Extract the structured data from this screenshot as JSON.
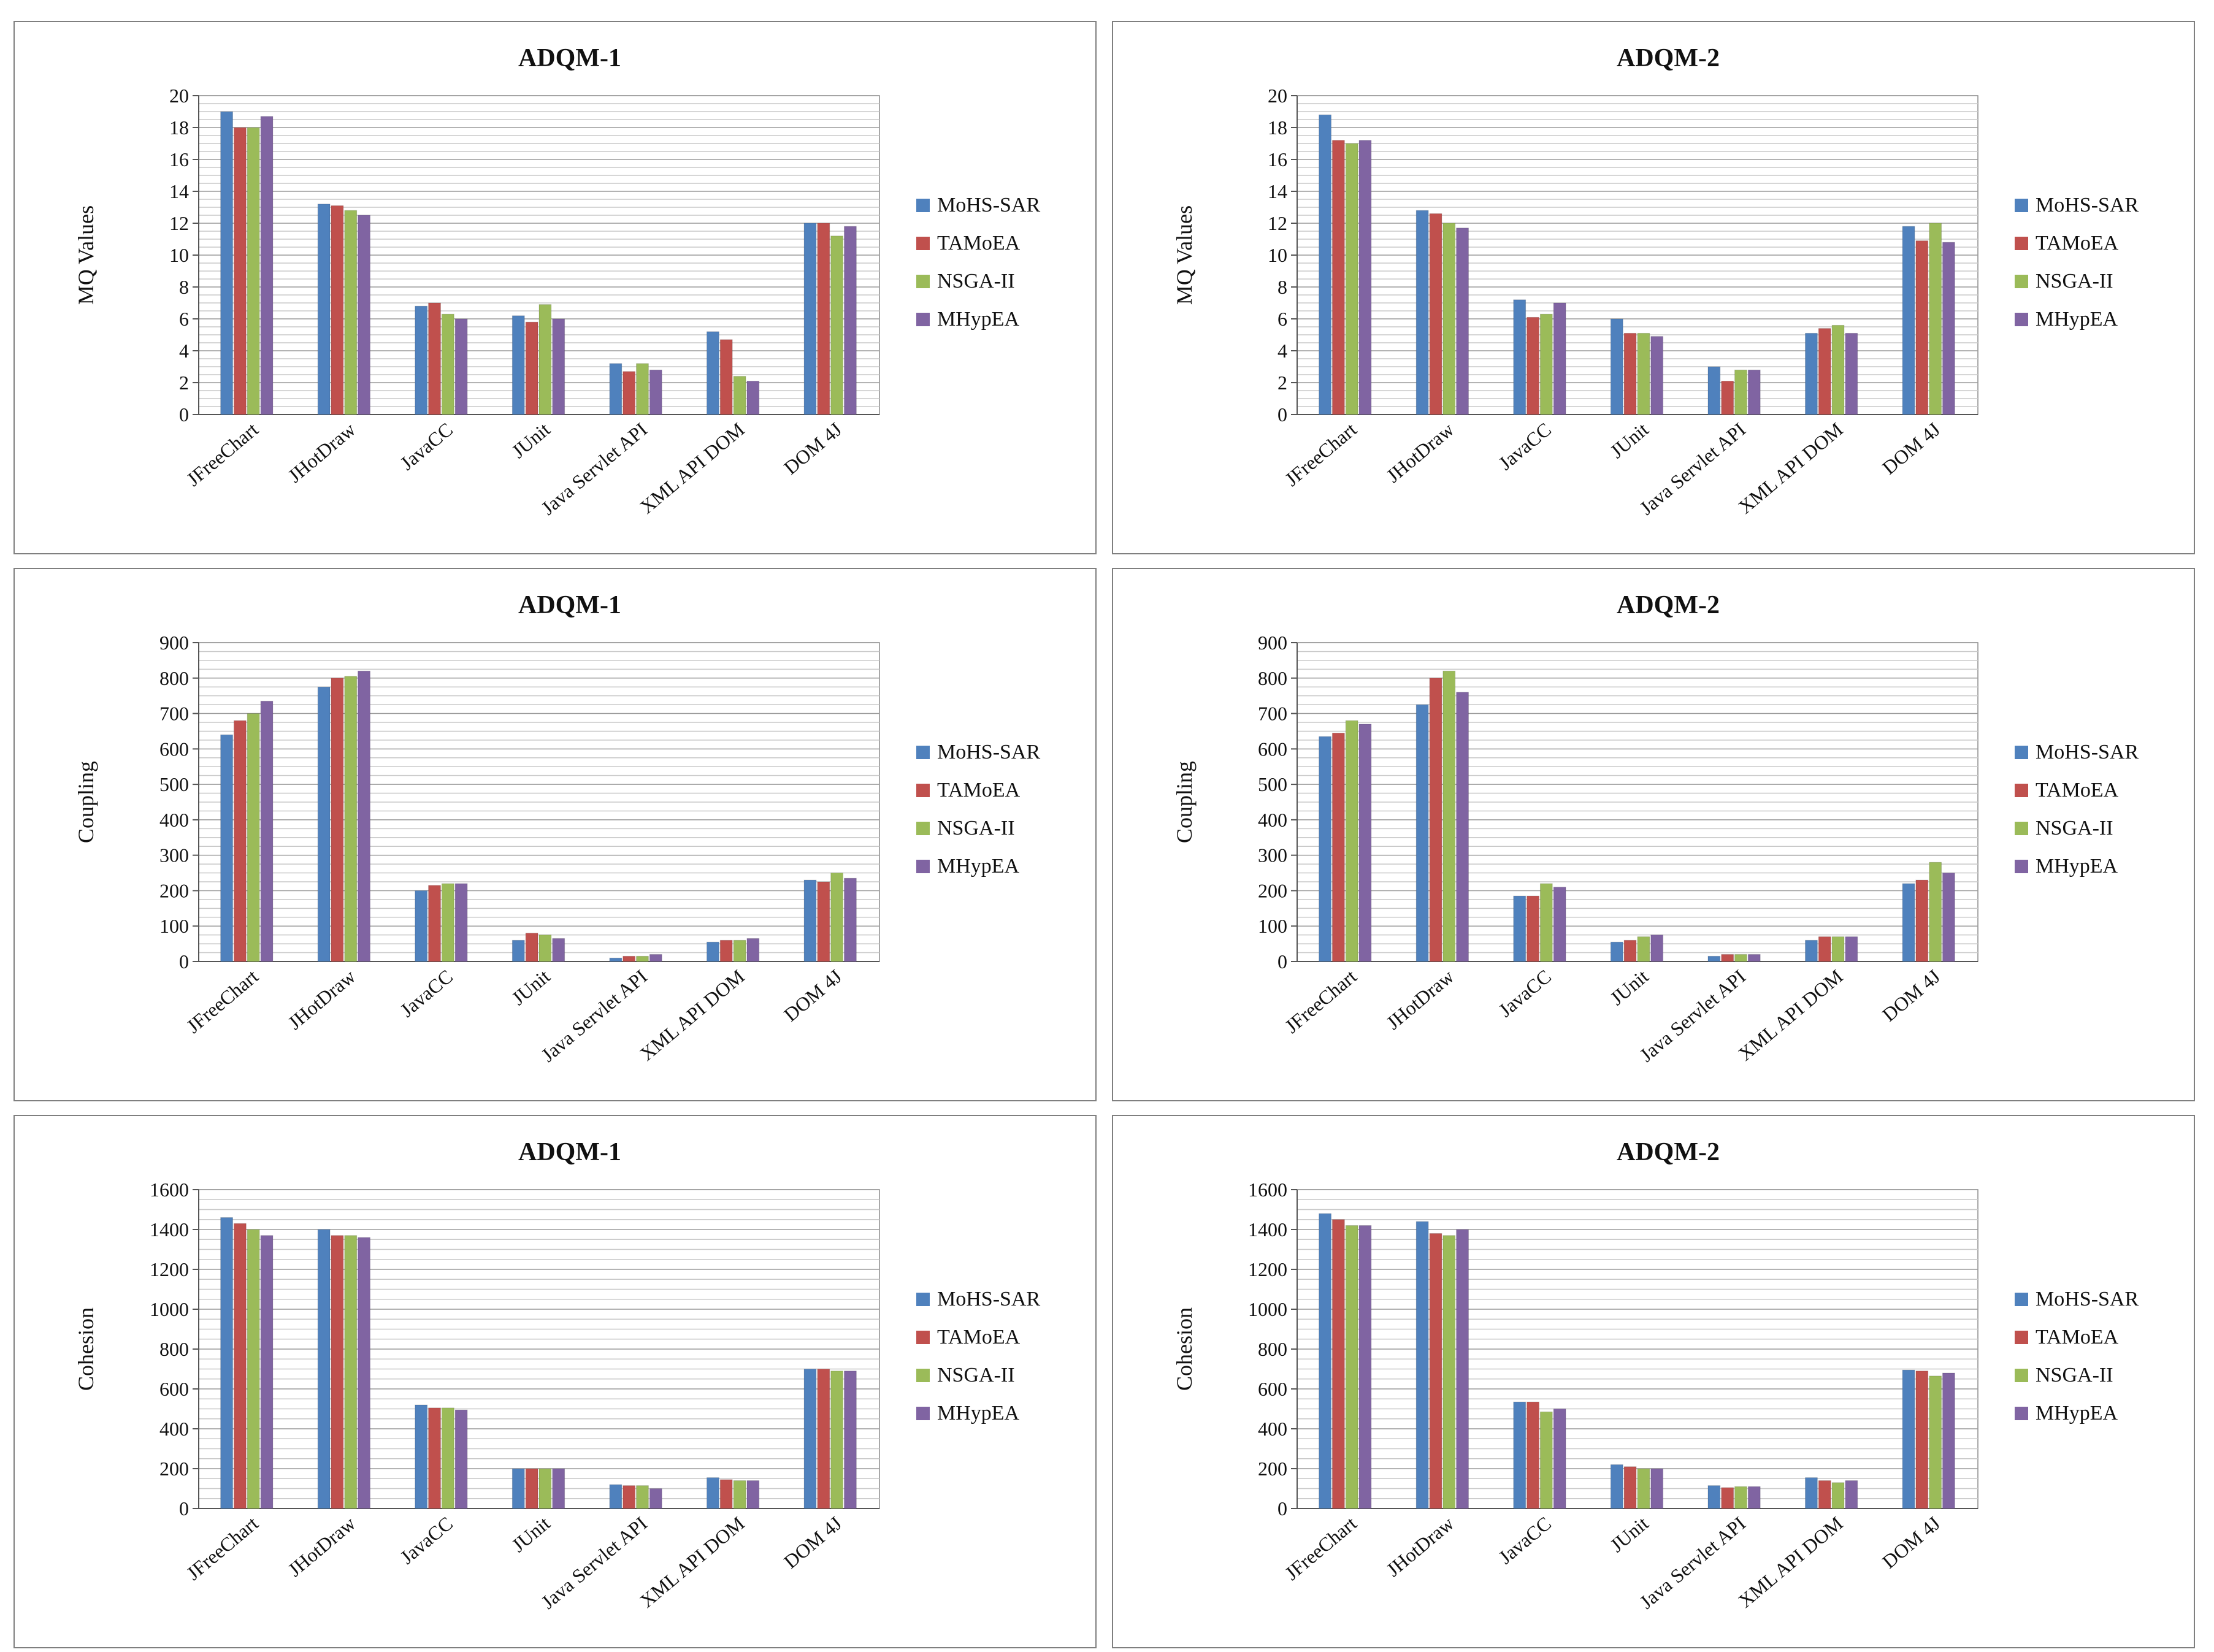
{
  "legend_series": [
    "MoHS-SAR",
    "TAMoEA",
    "NSGA-II",
    "MHypEA"
  ],
  "series_colors": [
    "#4f81bd",
    "#c0504d",
    "#9bbb59",
    "#8064a2"
  ],
  "categories": [
    "JFreeChart",
    "JHotDraw",
    "JavaCC",
    "JUnit",
    "Java Servlet API",
    "XML API DOM",
    "DOM 4J"
  ],
  "chart_data": [
    {
      "type": "bar",
      "title": "ADQM-1",
      "ylabel": "MQ Values",
      "xlabel": "",
      "ylim": [
        0,
        20
      ],
      "ytick_step": 2,
      "yticks": [
        "0",
        "2",
        "4",
        "6",
        "8",
        "10",
        "12",
        "14",
        "16",
        "18",
        "20"
      ],
      "categories": [
        "JFreeChart",
        "JHotDraw",
        "JavaCC",
        "JUnit",
        "Java Servlet API",
        "XML API DOM",
        "DOM 4J"
      ],
      "series": [
        {
          "name": "MoHS-SAR",
          "values": [
            19.0,
            13.2,
            6.8,
            6.2,
            3.2,
            5.2,
            12.0
          ]
        },
        {
          "name": "TAMoEA",
          "values": [
            18.0,
            13.1,
            7.0,
            5.8,
            2.7,
            4.7,
            12.0
          ]
        },
        {
          "name": "NSGA-II",
          "values": [
            18.0,
            12.8,
            6.3,
            6.9,
            3.2,
            2.4,
            11.2
          ]
        },
        {
          "name": "MHypEA",
          "values": [
            18.7,
            12.5,
            6.0,
            6.0,
            2.8,
            2.1,
            11.8
          ]
        }
      ]
    },
    {
      "type": "bar",
      "title": "ADQM-2",
      "ylabel": "MQ Values",
      "xlabel": "",
      "ylim": [
        0,
        20
      ],
      "ytick_step": 2,
      "yticks": [
        "0",
        "2",
        "4",
        "6",
        "8",
        "10",
        "12",
        "14",
        "16",
        "18",
        "20"
      ],
      "categories": [
        "JFreeChart",
        "JHotDraw",
        "JavaCC",
        "JUnit",
        "Java Servlet API",
        "XML API DOM",
        "DOM 4J"
      ],
      "series": [
        {
          "name": "MoHS-SAR",
          "values": [
            18.8,
            12.8,
            7.2,
            6.0,
            3.0,
            5.1,
            11.8
          ]
        },
        {
          "name": "TAMoEA",
          "values": [
            17.2,
            12.6,
            6.1,
            5.1,
            2.1,
            5.4,
            10.9
          ]
        },
        {
          "name": "NSGA-II",
          "values": [
            17.0,
            12.0,
            6.3,
            5.1,
            2.8,
            5.6,
            12.0
          ]
        },
        {
          "name": "MHypEA",
          "values": [
            17.2,
            11.7,
            7.0,
            4.9,
            2.8,
            5.1,
            10.8
          ]
        }
      ]
    },
    {
      "type": "bar",
      "title": "ADQM-1",
      "ylabel": "Coupling",
      "xlabel": "",
      "ylim": [
        0,
        900
      ],
      "ytick_step": 100,
      "yticks": [
        "0",
        "100",
        "200",
        "300",
        "400",
        "500",
        "600",
        "700",
        "800",
        "900"
      ],
      "categories": [
        "JFreeChart",
        "JHotDraw",
        "JavaCC",
        "JUnit",
        "Java Servlet API",
        "XML API DOM",
        "DOM 4J"
      ],
      "series": [
        {
          "name": "MoHS-SAR",
          "values": [
            640,
            775,
            200,
            60,
            10,
            55,
            230
          ]
        },
        {
          "name": "TAMoEA",
          "values": [
            680,
            800,
            215,
            80,
            15,
            60,
            225
          ]
        },
        {
          "name": "NSGA-II",
          "values": [
            700,
            805,
            220,
            75,
            15,
            60,
            250
          ]
        },
        {
          "name": "MHypEA",
          "values": [
            735,
            820,
            220,
            65,
            20,
            65,
            235
          ]
        }
      ]
    },
    {
      "type": "bar",
      "title": "ADQM-2",
      "ylabel": "Coupling",
      "xlabel": "",
      "ylim": [
        0,
        900
      ],
      "ytick_step": 100,
      "yticks": [
        "0",
        "100",
        "200",
        "300",
        "400",
        "500",
        "600",
        "700",
        "800",
        "900"
      ],
      "categories": [
        "JFreeChart",
        "JHotDraw",
        "JavaCC",
        "JUnit",
        "Java Servlet API",
        "XML API DOM",
        "DOM 4J"
      ],
      "series": [
        {
          "name": "MoHS-SAR",
          "values": [
            635,
            725,
            185,
            55,
            15,
            60,
            220
          ]
        },
        {
          "name": "TAMoEA",
          "values": [
            645,
            800,
            185,
            60,
            20,
            70,
            230
          ]
        },
        {
          "name": "NSGA-II",
          "values": [
            680,
            820,
            220,
            70,
            20,
            70,
            280
          ]
        },
        {
          "name": "MHypEA",
          "values": [
            670,
            760,
            210,
            75,
            20,
            70,
            250
          ]
        }
      ]
    },
    {
      "type": "bar",
      "title": "ADQM-1",
      "ylabel": "Cohesion",
      "xlabel": "",
      "ylim": [
        0,
        1600
      ],
      "ytick_step": 200,
      "yticks": [
        "0",
        "200",
        "400",
        "600",
        "800",
        "1000",
        "1200",
        "1400",
        "1600"
      ],
      "categories": [
        "JFreeChart",
        "JHotDraw",
        "JavaCC",
        "JUnit",
        "Java Servlet API",
        "XML API DOM",
        "DOM 4J"
      ],
      "series": [
        {
          "name": "MoHS-SAR",
          "values": [
            1460,
            1400,
            520,
            200,
            120,
            155,
            700
          ]
        },
        {
          "name": "TAMoEA",
          "values": [
            1430,
            1370,
            505,
            200,
            115,
            145,
            700
          ]
        },
        {
          "name": "NSGA-II",
          "values": [
            1400,
            1370,
            505,
            200,
            115,
            140,
            690
          ]
        },
        {
          "name": "MHypEA",
          "values": [
            1370,
            1360,
            495,
            200,
            100,
            140,
            690
          ]
        }
      ]
    },
    {
      "type": "bar",
      "title": "ADQM-2",
      "ylabel": "Cohesion",
      "xlabel": "",
      "ylim": [
        0,
        1600
      ],
      "ytick_step": 200,
      "yticks": [
        "0",
        "200",
        "400",
        "600",
        "800",
        "1000",
        "1200",
        "1400",
        "1600"
      ],
      "categories": [
        "JFreeChart",
        "JHotDraw",
        "JavaCC",
        "JUnit",
        "Java Servlet API",
        "XML API DOM",
        "DOM 4J"
      ],
      "series": [
        {
          "name": "MoHS-SAR",
          "values": [
            1480,
            1440,
            535,
            220,
            115,
            155,
            695
          ]
        },
        {
          "name": "TAMoEA",
          "values": [
            1450,
            1380,
            535,
            210,
            105,
            140,
            690
          ]
        },
        {
          "name": "NSGA-II",
          "values": [
            1420,
            1370,
            485,
            200,
            110,
            130,
            665
          ]
        },
        {
          "name": "MHypEA",
          "values": [
            1420,
            1400,
            500,
            200,
            110,
            140,
            680
          ]
        }
      ]
    }
  ]
}
